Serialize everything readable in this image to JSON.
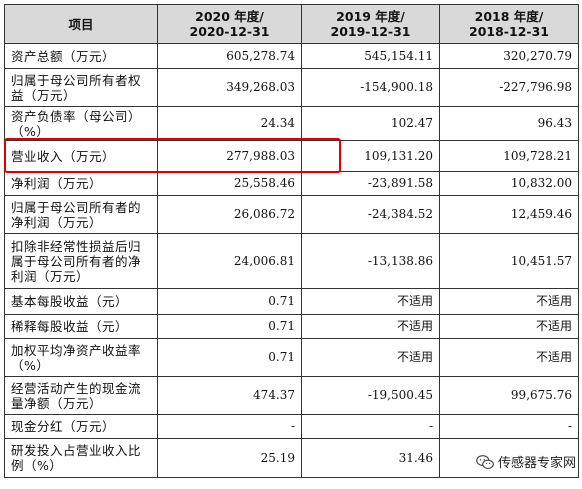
{
  "headers": {
    "item": "项目",
    "y2020_line1": "2020 年度/",
    "y2020_line2": "2020-12-31",
    "y2019_line1": "2019 年度/",
    "y2019_line2": "2019-12-31",
    "y2018_line1": "2018 年度/",
    "y2018_line2": "2018-12-31"
  },
  "rows": [
    {
      "label": "资产总额（万元）",
      "v2020": "605,278.74",
      "v2019": "545,154.11",
      "v2018": "320,270.79"
    },
    {
      "label": "归属于母公司所有者权益（万元）",
      "v2020": "349,268.03",
      "v2019": "-154,900.18",
      "v2018": "-227,796.98"
    },
    {
      "label": "资产负债率（母公司）（%）",
      "v2020": "24.34",
      "v2019": "102.47",
      "v2018": "96.43"
    },
    {
      "label": "营业收入（万元）",
      "v2020": "277,988.03",
      "v2019": "109,131.20",
      "v2018": "109,728.21"
    },
    {
      "label": "净利润（万元）",
      "v2020": "25,558.46",
      "v2019": "-23,891.58",
      "v2018": "10,832.00"
    },
    {
      "label": "归属于母公司所有者的净利润（万元）",
      "v2020": "26,086.72",
      "v2019": "-24,384.52",
      "v2018": "12,459.46"
    },
    {
      "label": "扣除非经常性损益后归属于母公司所有者的净利润（万元）",
      "v2020": "24,006.81",
      "v2019": "-13,138.86",
      "v2018": "10,451.57"
    },
    {
      "label": "基本每股收益（元）",
      "v2020": "0.71",
      "v2019": "不适用",
      "v2018": "不适用"
    },
    {
      "label": "稀释每股收益（元）",
      "v2020": "0.71",
      "v2019": "不适用",
      "v2018": "不适用"
    },
    {
      "label": "加权平均净资产收益率（%）",
      "v2020": "0.71",
      "v2019": "不适用",
      "v2018": "不适用"
    },
    {
      "label": "经营活动产生的现金流量净额（万元）",
      "v2020": "474.37",
      "v2019": "-19,500.45",
      "v2018": "99,675.76"
    },
    {
      "label": "现金分红（万元）",
      "v2020": "-",
      "v2019": "-",
      "v2018": "-"
    },
    {
      "label": "研发投入占营业收入比例（%）",
      "v2020": "25.19",
      "v2019": "31.46",
      "v2018": ""
    }
  ],
  "watermark": {
    "text": "传感器专家网",
    "icon": "wechat-icon"
  },
  "highlight_color": "#e00000"
}
